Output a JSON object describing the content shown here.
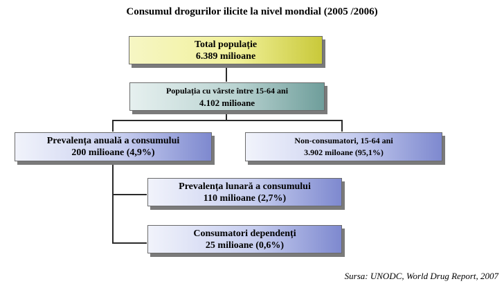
{
  "title": "Consumul drogurilor ilicite la nivel mondial (2005 /2006)",
  "nodes": {
    "total": {
      "line1": "Total populație",
      "line2": "6.389 milioane"
    },
    "age": {
      "line1": "Populația cu vârste între 15-64 ani",
      "line2": "4.102 milioane"
    },
    "annual": {
      "line1": "Prevalența anuală a consumului",
      "line2": "200 milioane (4,9%)"
    },
    "nonconsumers": {
      "line1": "Non-consumatori, 15-64 ani",
      "line2": "3.902 miloane (95,1%)"
    },
    "monthly": {
      "line1": "Prevalența lunară a consumului",
      "line2": "110 milioane (2,7%)"
    },
    "dependent": {
      "line1": "Consumatori dependenți",
      "line2": "25 milioane (0,6%)"
    }
  },
  "source": "Sursa: UNODC, World Drug Report, 2007"
}
